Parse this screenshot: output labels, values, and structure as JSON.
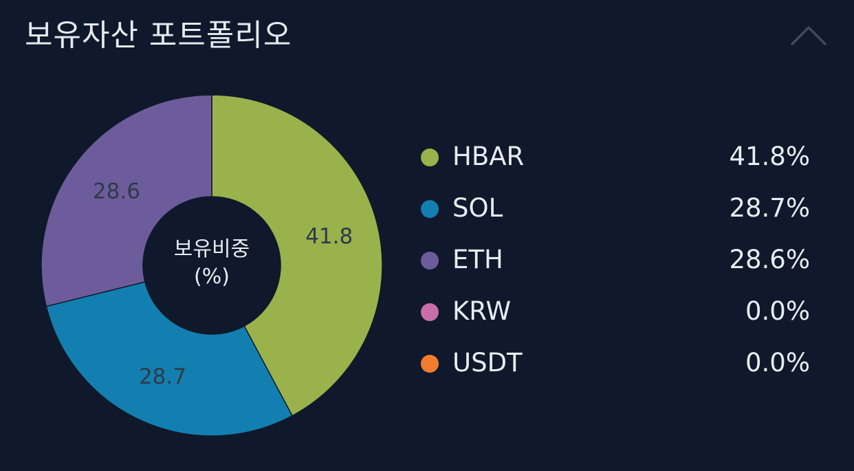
{
  "header": {
    "title": "보유자산 포트폴리오"
  },
  "chart_data": {
    "type": "pie",
    "donut": true,
    "center_label_line1": "보유비중",
    "center_label_line2": "(%)",
    "slices": [
      {
        "name": "HBAR",
        "value": 41.8,
        "label": "41.8",
        "color": "#99b24b"
      },
      {
        "name": "SOL",
        "value": 28.7,
        "label": "28.7",
        "color": "#137fb0"
      },
      {
        "name": "ETH",
        "value": 28.6,
        "label": "28.6",
        "color": "#6d5c9b"
      }
    ]
  },
  "legend": [
    {
      "name": "HBAR",
      "value": "41.8%",
      "color": "#99b24b"
    },
    {
      "name": "SOL",
      "value": "28.7%",
      "color": "#137fb0"
    },
    {
      "name": "ETH",
      "value": "28.6%",
      "color": "#6d5c9b"
    },
    {
      "name": "KRW",
      "value": "0.0%",
      "color": "#c86ea8"
    },
    {
      "name": "USDT",
      "value": "0.0%",
      "color": "#f07d2e"
    }
  ],
  "colors": {
    "background": "#0f192b",
    "chevron": "#3f4a5a",
    "slice_label": "#2d3a4a"
  },
  "icons": {
    "collapse": "chevron-up-icon"
  }
}
